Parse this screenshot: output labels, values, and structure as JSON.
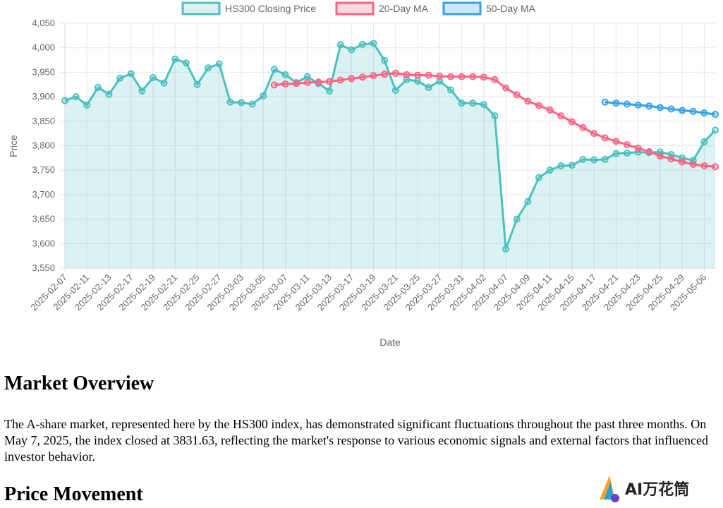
{
  "chart_data": {
    "type": "line",
    "xlabel": "Date",
    "ylabel": "Price",
    "ylim": [
      3550,
      4050
    ],
    "yticks": [
      3550,
      3600,
      3650,
      3700,
      3750,
      3800,
      3850,
      3900,
      3950,
      4000,
      4050
    ],
    "ytick_labels": [
      "3,550",
      "3,600",
      "3,650",
      "3,700",
      "3,750",
      "3,800",
      "3,850",
      "3,900",
      "3,950",
      "4,000",
      "4,050"
    ],
    "x": [
      "2025-02-07",
      "2025-02-10",
      "2025-02-11",
      "2025-02-12",
      "2025-02-13",
      "2025-02-14",
      "2025-02-17",
      "2025-02-18",
      "2025-02-19",
      "2025-02-20",
      "2025-02-21",
      "2025-02-24",
      "2025-02-25",
      "2025-02-26",
      "2025-02-27",
      "2025-02-28",
      "2025-03-03",
      "2025-03-04",
      "2025-03-05",
      "2025-03-06",
      "2025-03-07",
      "2025-03-10",
      "2025-03-11",
      "2025-03-12",
      "2025-03-13",
      "2025-03-14",
      "2025-03-17",
      "2025-03-18",
      "2025-03-19",
      "2025-03-20",
      "2025-03-21",
      "2025-03-24",
      "2025-03-25",
      "2025-03-26",
      "2025-03-27",
      "2025-03-28",
      "2025-03-31",
      "2025-04-01",
      "2025-04-02",
      "2025-04-03",
      "2025-04-07",
      "2025-04-08",
      "2025-04-09",
      "2025-04-10",
      "2025-04-11",
      "2025-04-14",
      "2025-04-15",
      "2025-04-16",
      "2025-04-17",
      "2025-04-18",
      "2025-04-21",
      "2025-04-22",
      "2025-04-23",
      "2025-04-24",
      "2025-04-25",
      "2025-04-28",
      "2025-04-29",
      "2025-04-30",
      "2025-05-06",
      "2025-05-07"
    ],
    "x_tick_labels": [
      "2025-02-07",
      "2025-02-11",
      "2025-02-13",
      "2025-02-17",
      "2025-02-19",
      "2025-02-21",
      "2025-02-25",
      "2025-02-27",
      "2025-03-03",
      "2025-03-05",
      "2025-03-07",
      "2025-03-11",
      "2025-03-13",
      "2025-03-17",
      "2025-03-19",
      "2025-03-21",
      "2025-03-25",
      "2025-03-27",
      "2025-03-31",
      "2025-04-02",
      "2025-04-07",
      "2025-04-09",
      "2025-04-11",
      "2025-04-15",
      "2025-04-17",
      "2025-04-21",
      "2025-04-23",
      "2025-04-25",
      "2025-04-29",
      "2025-05-06"
    ],
    "series": [
      {
        "name": "HS300 Closing Price",
        "color": "#4bc0c0",
        "fill": "rgba(75,192,192,0.2)",
        "values": [
          3892,
          3900,
          3883,
          3919,
          3905,
          3938,
          3947,
          3912,
          3939,
          3928,
          3977,
          3969,
          3925,
          3959,
          3967,
          3889,
          3888,
          3885,
          3902,
          3956,
          3945,
          3929,
          3941,
          3927,
          3912,
          4006,
          3996,
          4007,
          4009,
          3974,
          3913,
          3935,
          3932,
          3919,
          3932,
          3914,
          3887,
          3887,
          3884,
          3861,
          3589,
          3650,
          3686,
          3735,
          3750,
          3759,
          3760,
          3772,
          3771,
          3772,
          3784,
          3785,
          3787,
          3786,
          3787,
          3782,
          3775,
          3770,
          3808,
          3831.63
        ]
      },
      {
        "name": "20-Day MA",
        "color": "#ff6384",
        "values": [
          null,
          null,
          null,
          null,
          null,
          null,
          null,
          null,
          null,
          null,
          null,
          null,
          null,
          null,
          null,
          null,
          null,
          null,
          null,
          3924,
          3926,
          3927,
          3929,
          3930,
          3931,
          3934,
          3937,
          3940,
          3943,
          3946,
          3948,
          3945,
          3944,
          3944,
          3942,
          3941,
          3941,
          3941,
          3940,
          3935,
          3918,
          3904,
          3891,
          3882,
          3873,
          3861,
          3849,
          3837,
          3825,
          3816,
          3809,
          3802,
          3795,
          3788,
          3779,
          3773,
          3767,
          3762,
          3759,
          3757
        ]
      },
      {
        "name": "50-Day MA",
        "color": "#36a2eb",
        "values": [
          null,
          null,
          null,
          null,
          null,
          null,
          null,
          null,
          null,
          null,
          null,
          null,
          null,
          null,
          null,
          null,
          null,
          null,
          null,
          null,
          null,
          null,
          null,
          null,
          null,
          null,
          null,
          null,
          null,
          null,
          null,
          null,
          null,
          null,
          null,
          null,
          null,
          null,
          null,
          null,
          null,
          null,
          null,
          null,
          null,
          null,
          null,
          null,
          null,
          3889,
          3887,
          3885,
          3883,
          3881,
          3878,
          3875,
          3872,
          3870,
          3867,
          3864
        ]
      }
    ]
  },
  "article": {
    "heading_overview": "Market Overview",
    "paragraph": "The A-share market, represented here by the HS300 index, has demonstrated significant fluctuations throughout the past three months. On May 7, 2025, the index closed at 3831.63, reflecting the market's response to various economic signals and external factors that influenced investor behavior.",
    "heading_movement": "Price Movement"
  },
  "logo": {
    "text": "AI万花筒",
    "icon": "ai-logo-icon"
  }
}
